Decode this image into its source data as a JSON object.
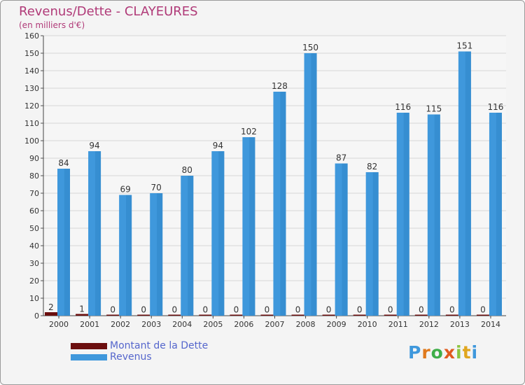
{
  "title": "Revenus/Dette - CLAYEURES",
  "subtitle": "(en milliers d'€)",
  "colors": {
    "dette": "#6b0e0e",
    "revenus": "#3f98dc",
    "title": "#b03a78",
    "legend_text": "#5566cc"
  },
  "legend": [
    {
      "label": "Montant de la Dette",
      "color": "#6b0e0e"
    },
    {
      "label": "Revenus",
      "color": "#3f98dc"
    }
  ],
  "logo_text": "Proxiti",
  "chart_data": {
    "type": "bar",
    "categories": [
      "2000",
      "2001",
      "2002",
      "2003",
      "2004",
      "2005",
      "2006",
      "2007",
      "2008",
      "2009",
      "2010",
      "2011",
      "2012",
      "2013",
      "2014"
    ],
    "series": [
      {
        "name": "Montant de la Dette",
        "values": [
          2,
          1,
          0,
          0,
          0,
          0,
          0,
          0,
          0,
          0,
          0,
          0,
          0,
          0,
          0
        ]
      },
      {
        "name": "Revenus",
        "values": [
          84,
          94,
          69,
          70,
          80,
          94,
          102,
          128,
          150,
          87,
          82,
          116,
          115,
          151,
          116
        ]
      }
    ],
    "ylim": [
      0,
      160
    ],
    "yticks": [
      0,
      10,
      20,
      30,
      40,
      50,
      60,
      70,
      80,
      90,
      100,
      110,
      120,
      130,
      140,
      150,
      160
    ],
    "grid": true,
    "legend_position": "bottom-left"
  }
}
